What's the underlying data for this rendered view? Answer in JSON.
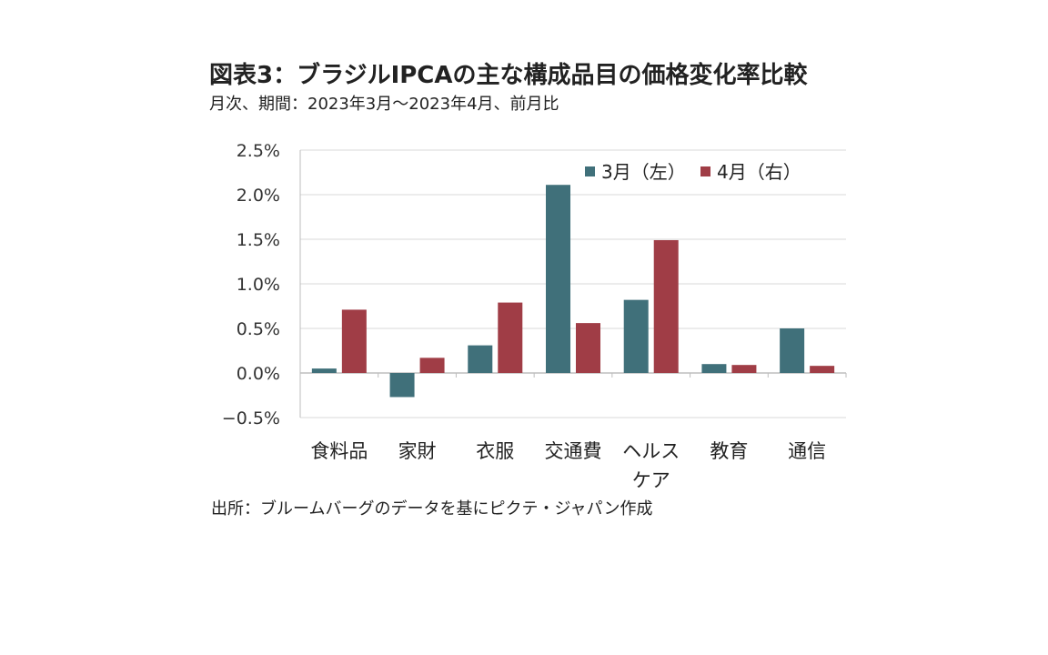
{
  "chart_data": {
    "type": "bar",
    "title": "図表3：ブラジルIPCAの主な構成品目の価格変化率比較",
    "subtitle": "月次、期間：2023年3月～2023年4月、前月比",
    "categories": [
      "食料品",
      "家財",
      "衣服",
      "交通費",
      "ヘルス\nケア",
      "教育",
      "通信"
    ],
    "series": [
      {
        "name": "3月（左）",
        "color": "#40707a",
        "values": [
          0.05,
          -0.27,
          0.31,
          2.11,
          0.82,
          0.1,
          0.5
        ]
      },
      {
        "name": "4月（右）",
        "color": "#a03d46",
        "values": [
          0.71,
          0.17,
          0.79,
          0.56,
          1.49,
          0.09,
          0.08
        ]
      }
    ],
    "y_ticks": [
      "2.5%",
      "2.0%",
      "1.5%",
      "1.0%",
      "0.5%",
      "0.0%",
      "−0.5%"
    ],
    "ylim": [
      -0.5,
      2.5
    ],
    "grid": true,
    "legend_position": "top-right",
    "source": "出所：ブルームバーグのデータを基にピクテ・ジャパン作成"
  }
}
